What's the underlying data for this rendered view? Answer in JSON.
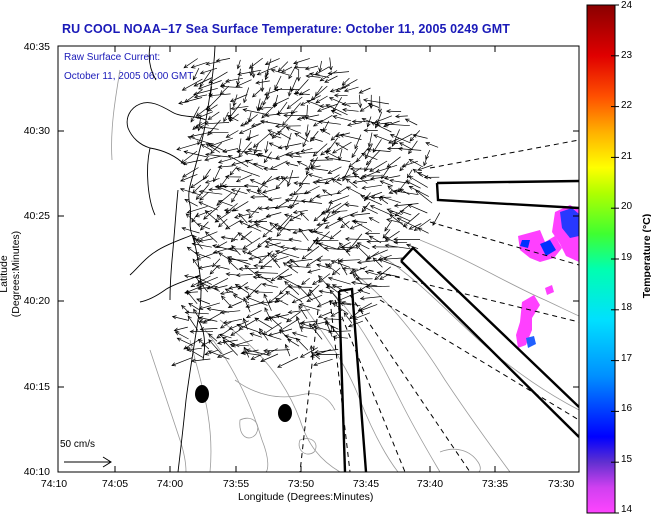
{
  "title": "RU COOL  NOAA–17  Sea Surface Temperature:  October 11, 2005 0249 GMT",
  "subtitle_line1": "Raw Surface Current:",
  "subtitle_line2": "October 11, 2005 06:00 GMT",
  "y_axis": {
    "label": "Latitude (Degrees:Minutes)",
    "ticks": [
      "40:35",
      "40:30",
      "40:25",
      "40:20",
      "40:15",
      "40:10"
    ]
  },
  "x_axis": {
    "label": "Longitude (Degrees:Minutes)",
    "ticks": [
      "74:10",
      "74:05",
      "74:00",
      "73:55",
      "73:50",
      "73:45",
      "73:40",
      "73:35",
      "73:30"
    ]
  },
  "colorbar": {
    "label": "Temperature (°C)",
    "ticks": [
      "24",
      "23",
      "22",
      "21",
      "20",
      "19",
      "18",
      "17",
      "16",
      "15",
      "14"
    ],
    "range": [
      14,
      24
    ],
    "colors": [
      "#ff44ff",
      "#c040f0",
      "#5030d0",
      "#0000ff",
      "#0070ff",
      "#00c8ff",
      "#00ffc8",
      "#30ff40",
      "#a0ff00",
      "#ffff00",
      "#ffb000",
      "#ff5000",
      "#e00000",
      "#900000"
    ]
  },
  "scale_arrow": {
    "label": "50 cm/s"
  },
  "colors": {
    "title": "#1a1ab8",
    "coast": "#000000",
    "bathymetry": "#909090",
    "sst_patch_warm": "#ff40ff",
    "sst_patch_cool": "#0030ff"
  }
}
